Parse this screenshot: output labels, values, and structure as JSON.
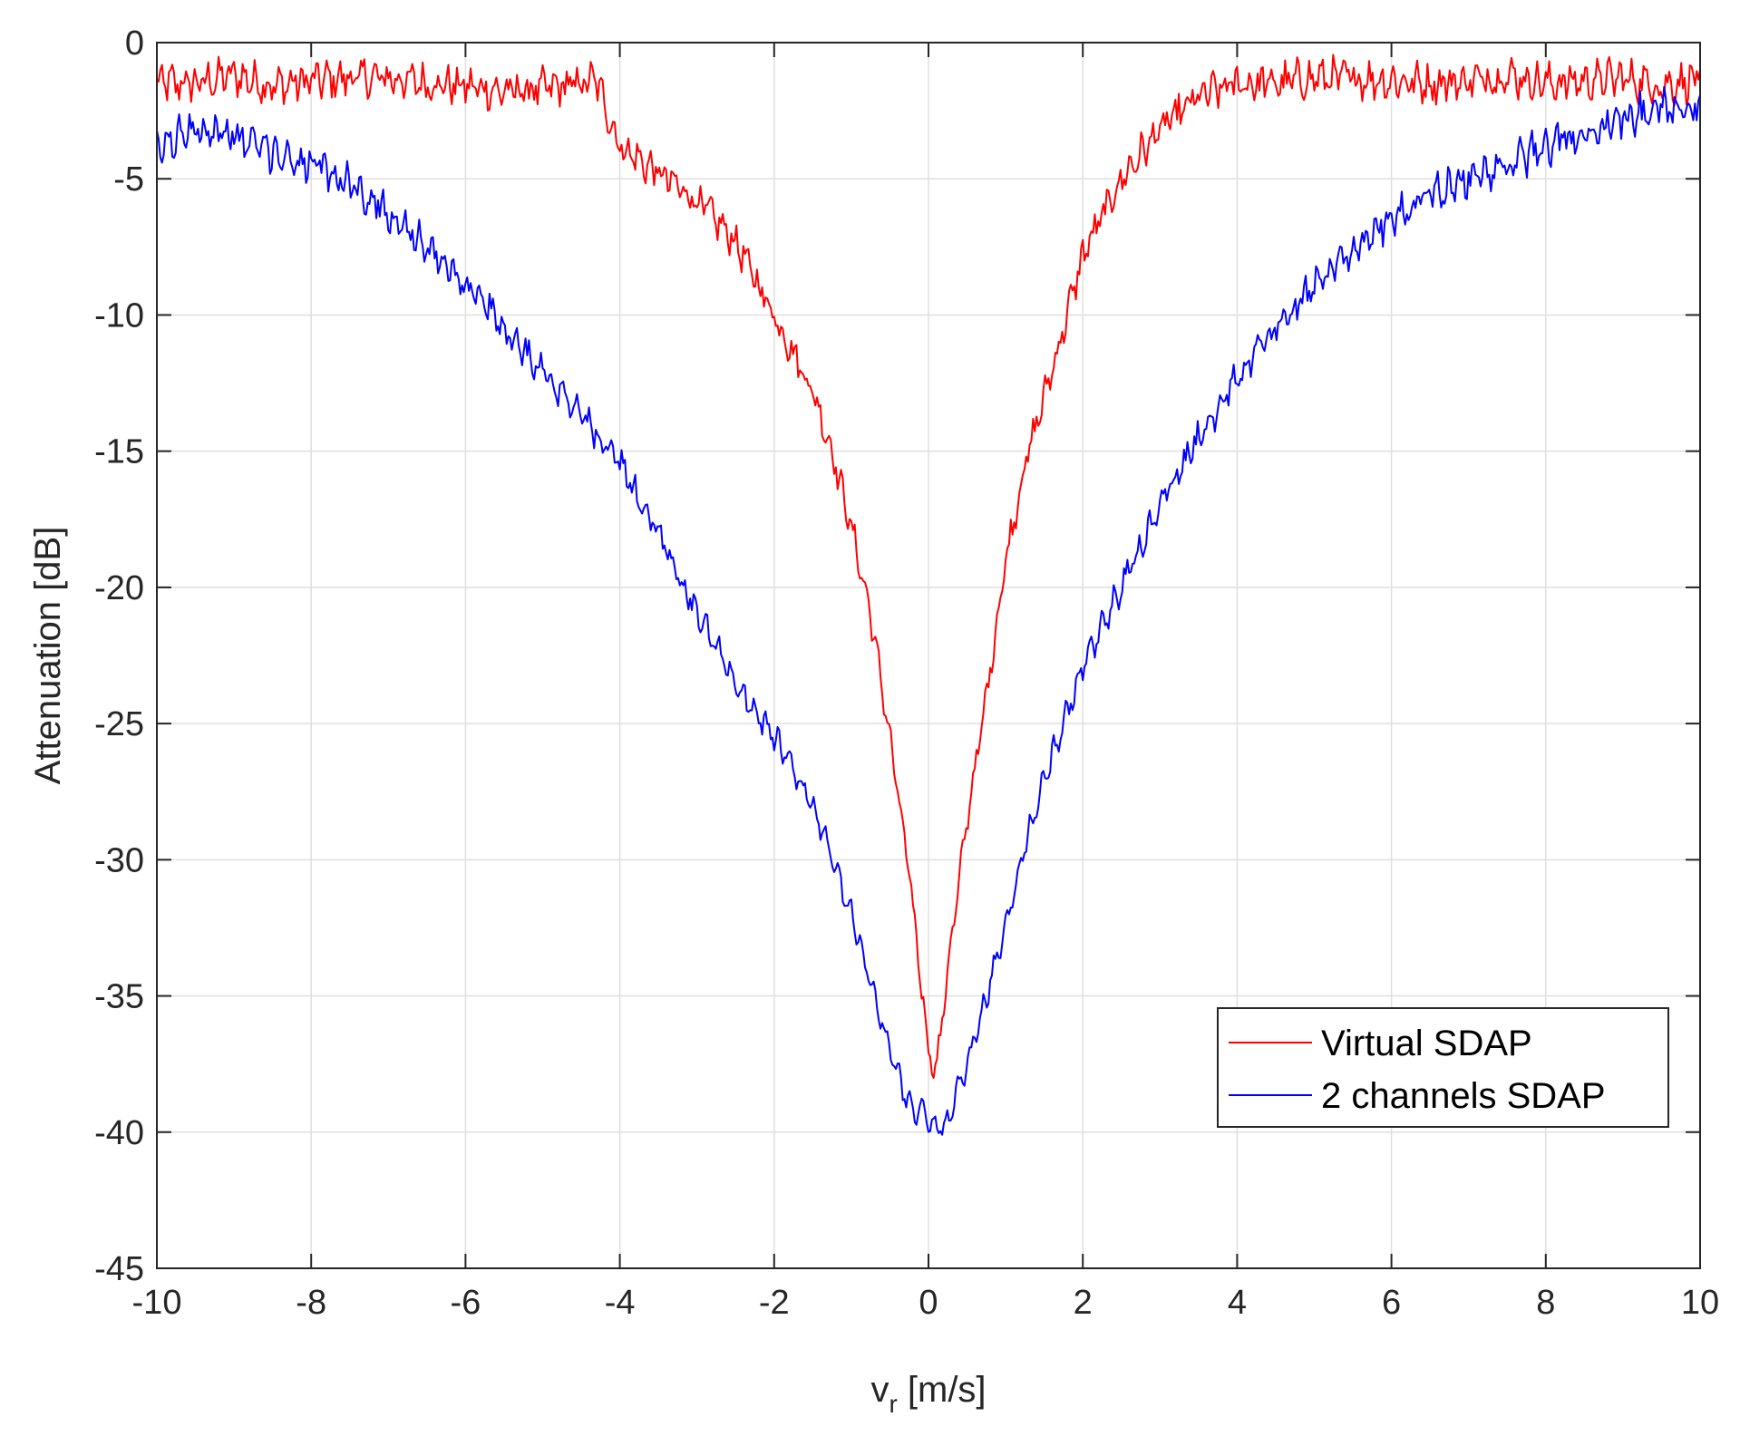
{
  "chart_data": {
    "type": "line",
    "xlabel_main": "v",
    "xlabel_sub": "r",
    "xlabel_rest": " [m/s]",
    "ylabel": "Attenuation [dB]",
    "xlim": [
      -10,
      10
    ],
    "ylim": [
      -45,
      0
    ],
    "x_ticks": [
      -10,
      -8,
      -6,
      -4,
      -2,
      0,
      2,
      4,
      6,
      8,
      10
    ],
    "x_tick_labels": [
      "-10",
      "-8",
      "-6",
      "-4",
      "-2",
      "0",
      "2",
      "4",
      "6",
      "8",
      "10"
    ],
    "y_ticks": [
      0,
      -5,
      -10,
      -15,
      -20,
      -25,
      -30,
      -35,
      -40,
      -45
    ],
    "y_tick_labels": [
      "0",
      "-5",
      "-10",
      "-15",
      "-20",
      "-25",
      "-30",
      "-35",
      "-40",
      "-45"
    ],
    "grid": true,
    "legend_position": "bottom-right",
    "series": [
      {
        "name": "Virtual SDAP",
        "color": "#ff0000",
        "x": [
          -10,
          -9.5,
          -9,
          -8.5,
          -8,
          -7.5,
          -7,
          -6.5,
          -6,
          -5.5,
          -5,
          -4.5,
          -4.3,
          -4,
          -3.5,
          -3,
          -2.5,
          -2,
          -1.5,
          -1.25,
          -1,
          -0.75,
          -0.5,
          -0.25,
          0,
          0.1,
          0.25,
          0.5,
          0.75,
          1,
          1.25,
          1.5,
          1.75,
          2,
          2.5,
          3,
          3.5,
          4,
          4.5,
          5,
          5.5,
          6,
          6.5,
          7,
          7.5,
          8,
          8.5,
          9,
          9.5,
          10
        ],
        "y": [
          -1.5,
          -1.5,
          -1.2,
          -1.6,
          -1.4,
          -1.3,
          -1.3,
          -1.5,
          -1.6,
          -1.8,
          -1.7,
          -1.5,
          -1.4,
          -3.8,
          -4.8,
          -5.8,
          -7.3,
          -10.0,
          -12.8,
          -15.0,
          -17.8,
          -21.0,
          -25.5,
          -30.5,
          -37.0,
          -37.8,
          -34.0,
          -28.5,
          -24.0,
          -19.0,
          -15.5,
          -13.0,
          -10.5,
          -7.8,
          -5.0,
          -3.2,
          -2.0,
          -1.5,
          -1.5,
          -1.3,
          -1.3,
          -1.4,
          -1.5,
          -1.4,
          -1.2,
          -1.5,
          -1.4,
          -1.3,
          -1.6,
          -1.3
        ]
      },
      {
        "name": "2 channels SDAP",
        "color": "#0000ff",
        "x": [
          -10,
          -9.5,
          -9,
          -8.5,
          -8,
          -7.5,
          -7,
          -6.5,
          -6,
          -5.5,
          -5,
          -4.5,
          -4,
          -3.5,
          -3,
          -2.5,
          -2,
          -1.5,
          -1.25,
          -1,
          -0.75,
          -0.5,
          -0.25,
          0,
          0.1,
          0.25,
          0.5,
          0.75,
          1,
          1.25,
          1.5,
          1.75,
          2,
          2.5,
          3,
          3.5,
          4,
          4.5,
          5,
          5.5,
          6,
          6.5,
          7,
          7.5,
          8,
          8.5,
          9,
          9.5,
          10
        ],
        "y": [
          -4.0,
          -3.0,
          -3.5,
          -4.0,
          -4.5,
          -5.2,
          -6.2,
          -7.5,
          -8.8,
          -10.5,
          -12.0,
          -13.6,
          -15.5,
          -18.0,
          -21.0,
          -23.5,
          -25.5,
          -28.0,
          -30.0,
          -32.0,
          -34.5,
          -37.0,
          -39.0,
          -39.5,
          -40.0,
          -39.5,
          -37.5,
          -35.0,
          -32.5,
          -29.5,
          -27.0,
          -25.0,
          -23.0,
          -20.0,
          -17.0,
          -14.5,
          -12.3,
          -10.5,
          -9.0,
          -7.5,
          -6.5,
          -5.5,
          -5.0,
          -4.5,
          -3.8,
          -3.3,
          -2.8,
          -2.4,
          -2.2
        ]
      }
    ]
  }
}
